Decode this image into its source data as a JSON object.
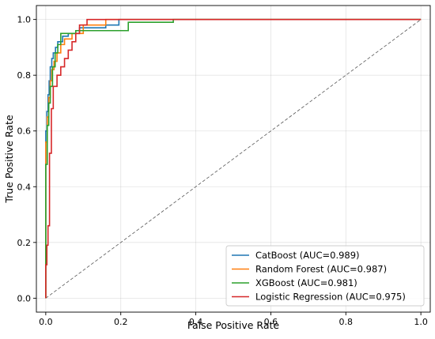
{
  "chart_data": {
    "type": "line",
    "title": "",
    "xlabel": "False Positive Rate",
    "ylabel": "True Positive Rate",
    "xlim": [
      -0.025,
      1.025
    ],
    "ylim": [
      -0.05,
      1.05
    ],
    "xticks": [
      "0.0",
      "0.2",
      "0.4",
      "0.6",
      "0.8",
      "1.0"
    ],
    "yticks": [
      "0.0",
      "0.2",
      "0.4",
      "0.6",
      "0.8",
      "1.0"
    ],
    "grid": true,
    "legend_position": "lower-right",
    "diagonal": {
      "x": [
        0,
        1
      ],
      "y": [
        0,
        1
      ],
      "style": "dashed",
      "color": "#555555"
    },
    "series": [
      {
        "name": "CatBoost (AUC=0.989)",
        "color": "#1f77b4",
        "x": [
          0,
          0,
          0.003,
          0.003,
          0.006,
          0.006,
          0.009,
          0.009,
          0.012,
          0.012,
          0.016,
          0.016,
          0.02,
          0.02,
          0.026,
          0.026,
          0.032,
          0.032,
          0.045,
          0.045,
          0.06,
          0.06,
          0.09,
          0.09,
          0.16,
          0.16,
          0.195,
          0.195,
          1.0
        ],
        "y": [
          0,
          0.6,
          0.6,
          0.67,
          0.67,
          0.73,
          0.73,
          0.78,
          0.78,
          0.83,
          0.83,
          0.86,
          0.86,
          0.88,
          0.88,
          0.9,
          0.9,
          0.92,
          0.92,
          0.94,
          0.94,
          0.95,
          0.95,
          0.97,
          0.97,
          0.98,
          0.98,
          1.0,
          1.0
        ]
      },
      {
        "name": "Random Forest (AUC=0.987)",
        "color": "#ff7f0e",
        "x": [
          0,
          0,
          0.004,
          0.004,
          0.008,
          0.008,
          0.012,
          0.012,
          0.016,
          0.016,
          0.022,
          0.022,
          0.03,
          0.03,
          0.04,
          0.04,
          0.05,
          0.05,
          0.07,
          0.07,
          0.1,
          0.1,
          0.16,
          0.16,
          1.0
        ],
        "y": [
          0,
          0.56,
          0.56,
          0.65,
          0.65,
          0.72,
          0.72,
          0.78,
          0.78,
          0.82,
          0.82,
          0.85,
          0.85,
          0.88,
          0.88,
          0.91,
          0.91,
          0.93,
          0.93,
          0.95,
          0.95,
          0.98,
          0.98,
          1.0,
          1.0
        ]
      },
      {
        "name": "XGBoost (AUC=0.981)",
        "color": "#2ca02c",
        "x": [
          0,
          0,
          0.004,
          0.004,
          0.008,
          0.008,
          0.012,
          0.012,
          0.018,
          0.018,
          0.025,
          0.025,
          0.032,
          0.032,
          0.04,
          0.04,
          0.08,
          0.08,
          0.22,
          0.22,
          0.34,
          0.34,
          1.0
        ],
        "y": [
          0,
          0.48,
          0.48,
          0.62,
          0.62,
          0.7,
          0.7,
          0.76,
          0.76,
          0.83,
          0.83,
          0.88,
          0.88,
          0.91,
          0.91,
          0.95,
          0.95,
          0.96,
          0.96,
          0.99,
          0.99,
          1.0,
          1.0
        ]
      },
      {
        "name": "Logistic Regression (AUC=0.975)",
        "color": "#d62728",
        "x": [
          0,
          0,
          0.003,
          0.003,
          0.006,
          0.006,
          0.01,
          0.01,
          0.015,
          0.015,
          0.02,
          0.02,
          0.03,
          0.03,
          0.04,
          0.04,
          0.05,
          0.05,
          0.06,
          0.06,
          0.07,
          0.07,
          0.08,
          0.08,
          0.09,
          0.09,
          0.11,
          0.11,
          1.0
        ],
        "y": [
          0,
          0.12,
          0.12,
          0.19,
          0.19,
          0.26,
          0.26,
          0.52,
          0.52,
          0.68,
          0.68,
          0.76,
          0.76,
          0.8,
          0.8,
          0.83,
          0.83,
          0.86,
          0.86,
          0.89,
          0.89,
          0.92,
          0.92,
          0.95,
          0.95,
          0.98,
          0.98,
          1.0,
          1.0
        ]
      }
    ]
  }
}
